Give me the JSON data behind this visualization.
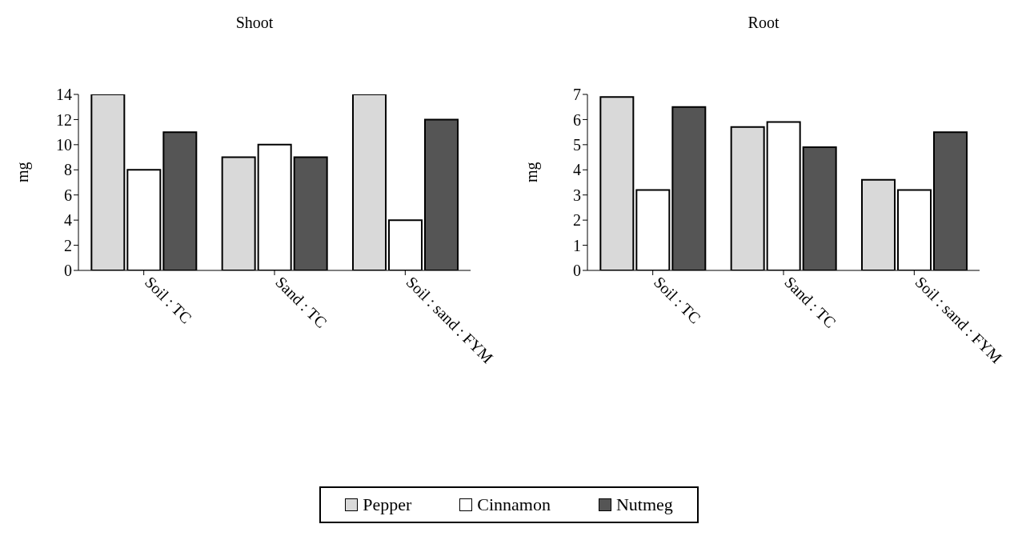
{
  "chart_data": [
    {
      "type": "bar",
      "title": "Shoot",
      "ylabel": "mg",
      "categories": [
        "Soil : TC",
        "Sand : TC",
        "Soil : sand : FYM"
      ],
      "ylim": [
        0,
        14
      ],
      "yticks": [
        0,
        2,
        4,
        6,
        8,
        10,
        12,
        14
      ],
      "legend": "bottom",
      "series": [
        {
          "name": "Pepper",
          "color": "#d9d9d9",
          "values": [
            14,
            9,
            14
          ]
        },
        {
          "name": "Cinnamon",
          "color": "#ffffff",
          "values": [
            8,
            10,
            4
          ]
        },
        {
          "name": "Nutmeg",
          "color": "#555555",
          "values": [
            11,
            9,
            12
          ]
        }
      ]
    },
    {
      "type": "bar",
      "title": "Root",
      "ylabel": "mg",
      "categories": [
        "Soil : TC",
        "Sand : TC",
        "Soil : sand : FYM"
      ],
      "ylim": [
        0,
        7
      ],
      "yticks": [
        0,
        1,
        2,
        3,
        4,
        5,
        6,
        7
      ],
      "series": [
        {
          "color": "#d9d9d9",
          "values": [
            6.9,
            5.7,
            3.6
          ]
        },
        {
          "color": "#ffffff",
          "values": [
            3.2,
            5.9,
            3.2
          ]
        },
        {
          "color": "#555555",
          "values": [
            6.5,
            4.9,
            5.5
          ]
        }
      ]
    }
  ]
}
